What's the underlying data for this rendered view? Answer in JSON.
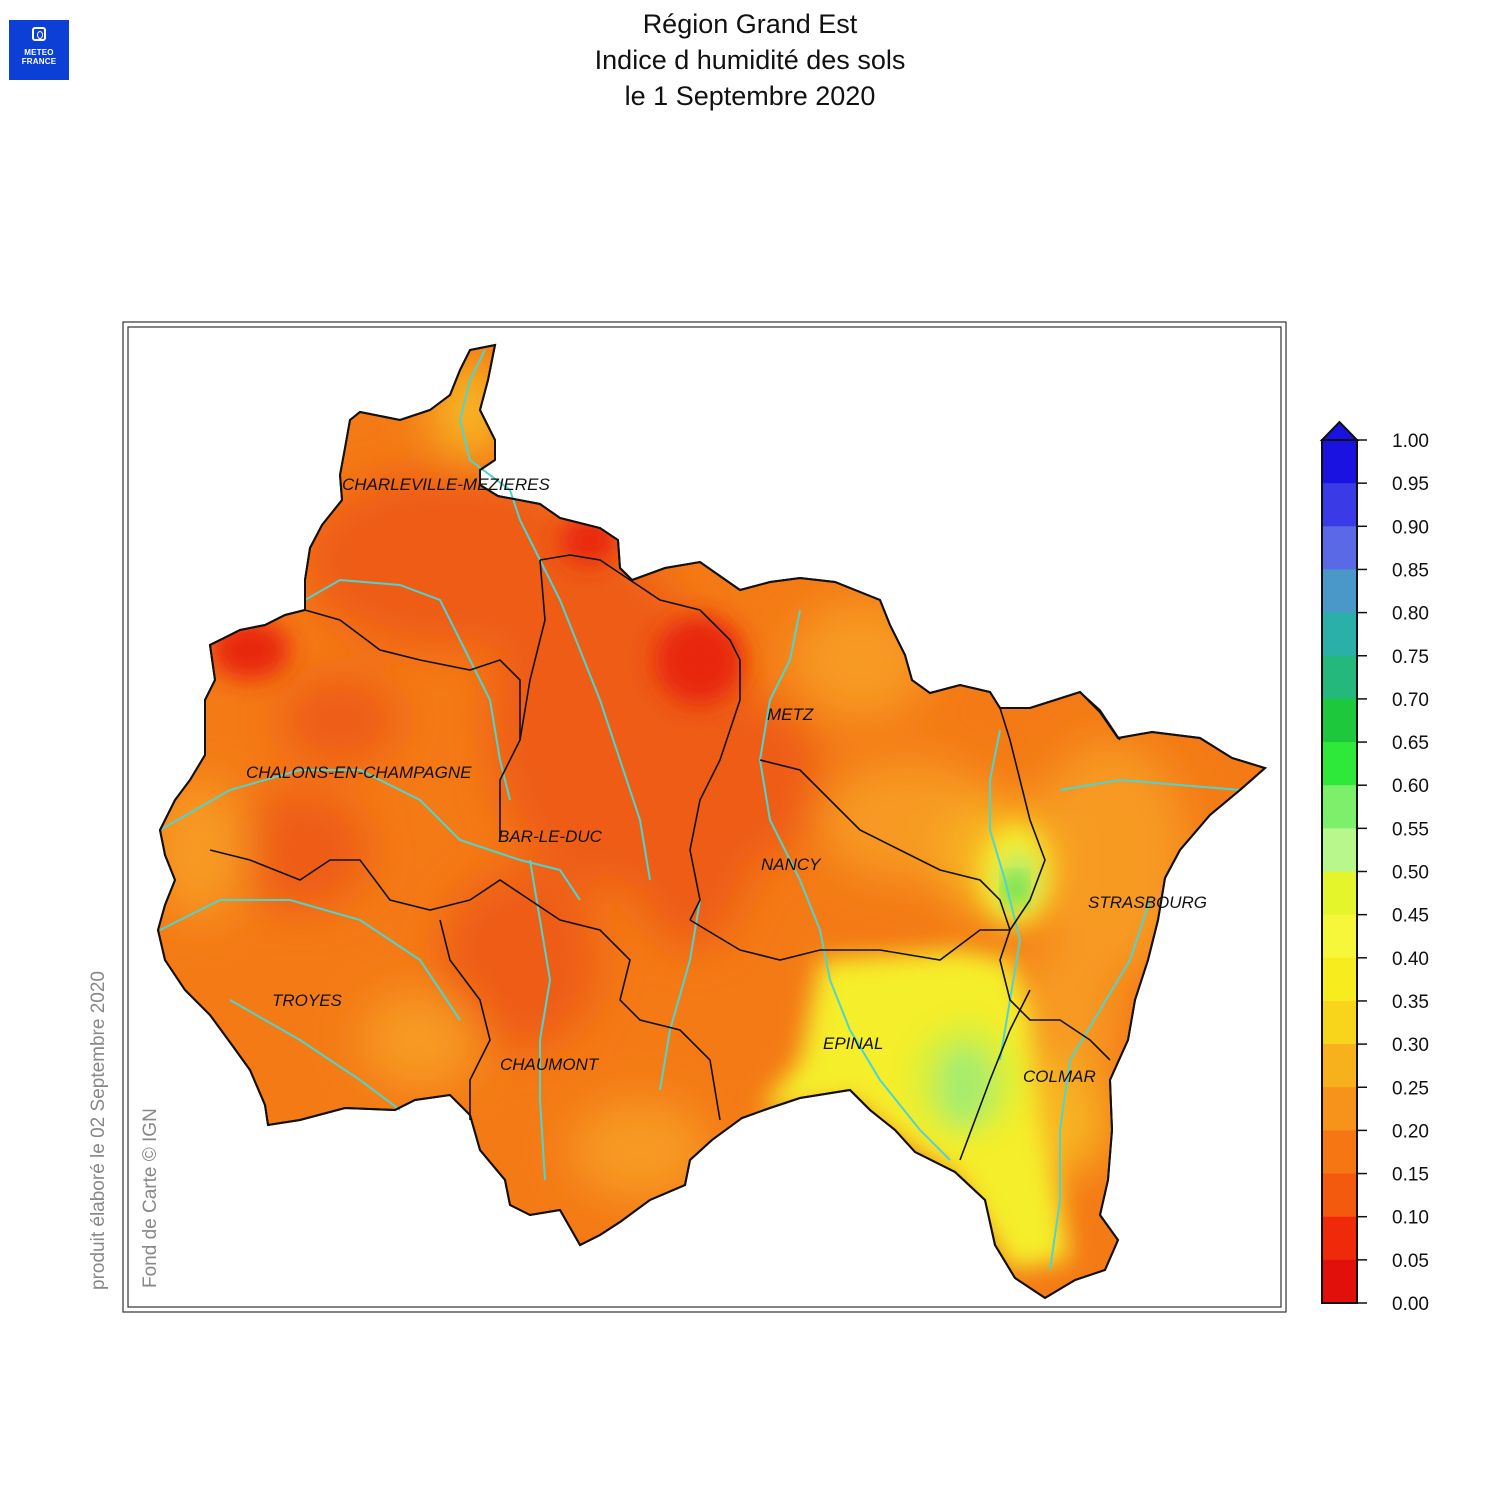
{
  "header": {
    "title_line1": "Région Grand Est",
    "title_line2": "Indice d humidité des sols",
    "title_line3": "le 1 Septembre 2020"
  },
  "logo": {
    "line1": "METEO",
    "line2": "FRANCE",
    "icon": "meteo-france-logo"
  },
  "side_notes": {
    "produced": "produit élaboré le 02 Septembre 2020",
    "basemap": "Fond de Carte © IGN"
  },
  "cities": [
    {
      "name": "CHARLEVILLE-MEZIERES"
    },
    {
      "name": "METZ"
    },
    {
      "name": "CHALONS-EN-CHAMPAGNE"
    },
    {
      "name": "BAR-LE-DUC"
    },
    {
      "name": "NANCY"
    },
    {
      "name": "STRASBOURG"
    },
    {
      "name": "TROYES"
    },
    {
      "name": "EPINAL"
    },
    {
      "name": "COLMAR"
    },
    {
      "name": "CHAUMONT"
    }
  ],
  "legend": {
    "labels": [
      "1.00",
      "0.95",
      "0.90",
      "0.85",
      "0.80",
      "0.75",
      "0.70",
      "0.65",
      "0.60",
      "0.55",
      "0.50",
      "0.45",
      "0.40",
      "0.35",
      "0.30",
      "0.25",
      "0.20",
      "0.15",
      "0.10",
      "0.05",
      "0.00"
    ],
    "colors_top_to_bottom": [
      "#1a12e0",
      "#3a3ae6",
      "#5a6ae6",
      "#4a98c8",
      "#2ab0a8",
      "#24b87c",
      "#1ec83c",
      "#2ee83a",
      "#7cf06a",
      "#b8f78c",
      "#e4f52c",
      "#f6f73a",
      "#f7ec1e",
      "#f8d41a",
      "#f7b11c",
      "#f7921a",
      "#f67614",
      "#f45a0e",
      "#ee2a0a",
      "#e2100a"
    ],
    "overflow_color": "#1a12e0"
  },
  "map_colors": {
    "base": "#f47a16",
    "dark_orange": "#ee5c12",
    "red": "#e8280c",
    "light_orange": "#f79a22",
    "yellow_orange": "#f7b420",
    "yellow": "#f5ee2c",
    "yellow_green": "#d8f038",
    "light_green": "#a8ec6c",
    "green": "#3ad83c",
    "river": "#4fd4d0",
    "border": "#111111"
  }
}
